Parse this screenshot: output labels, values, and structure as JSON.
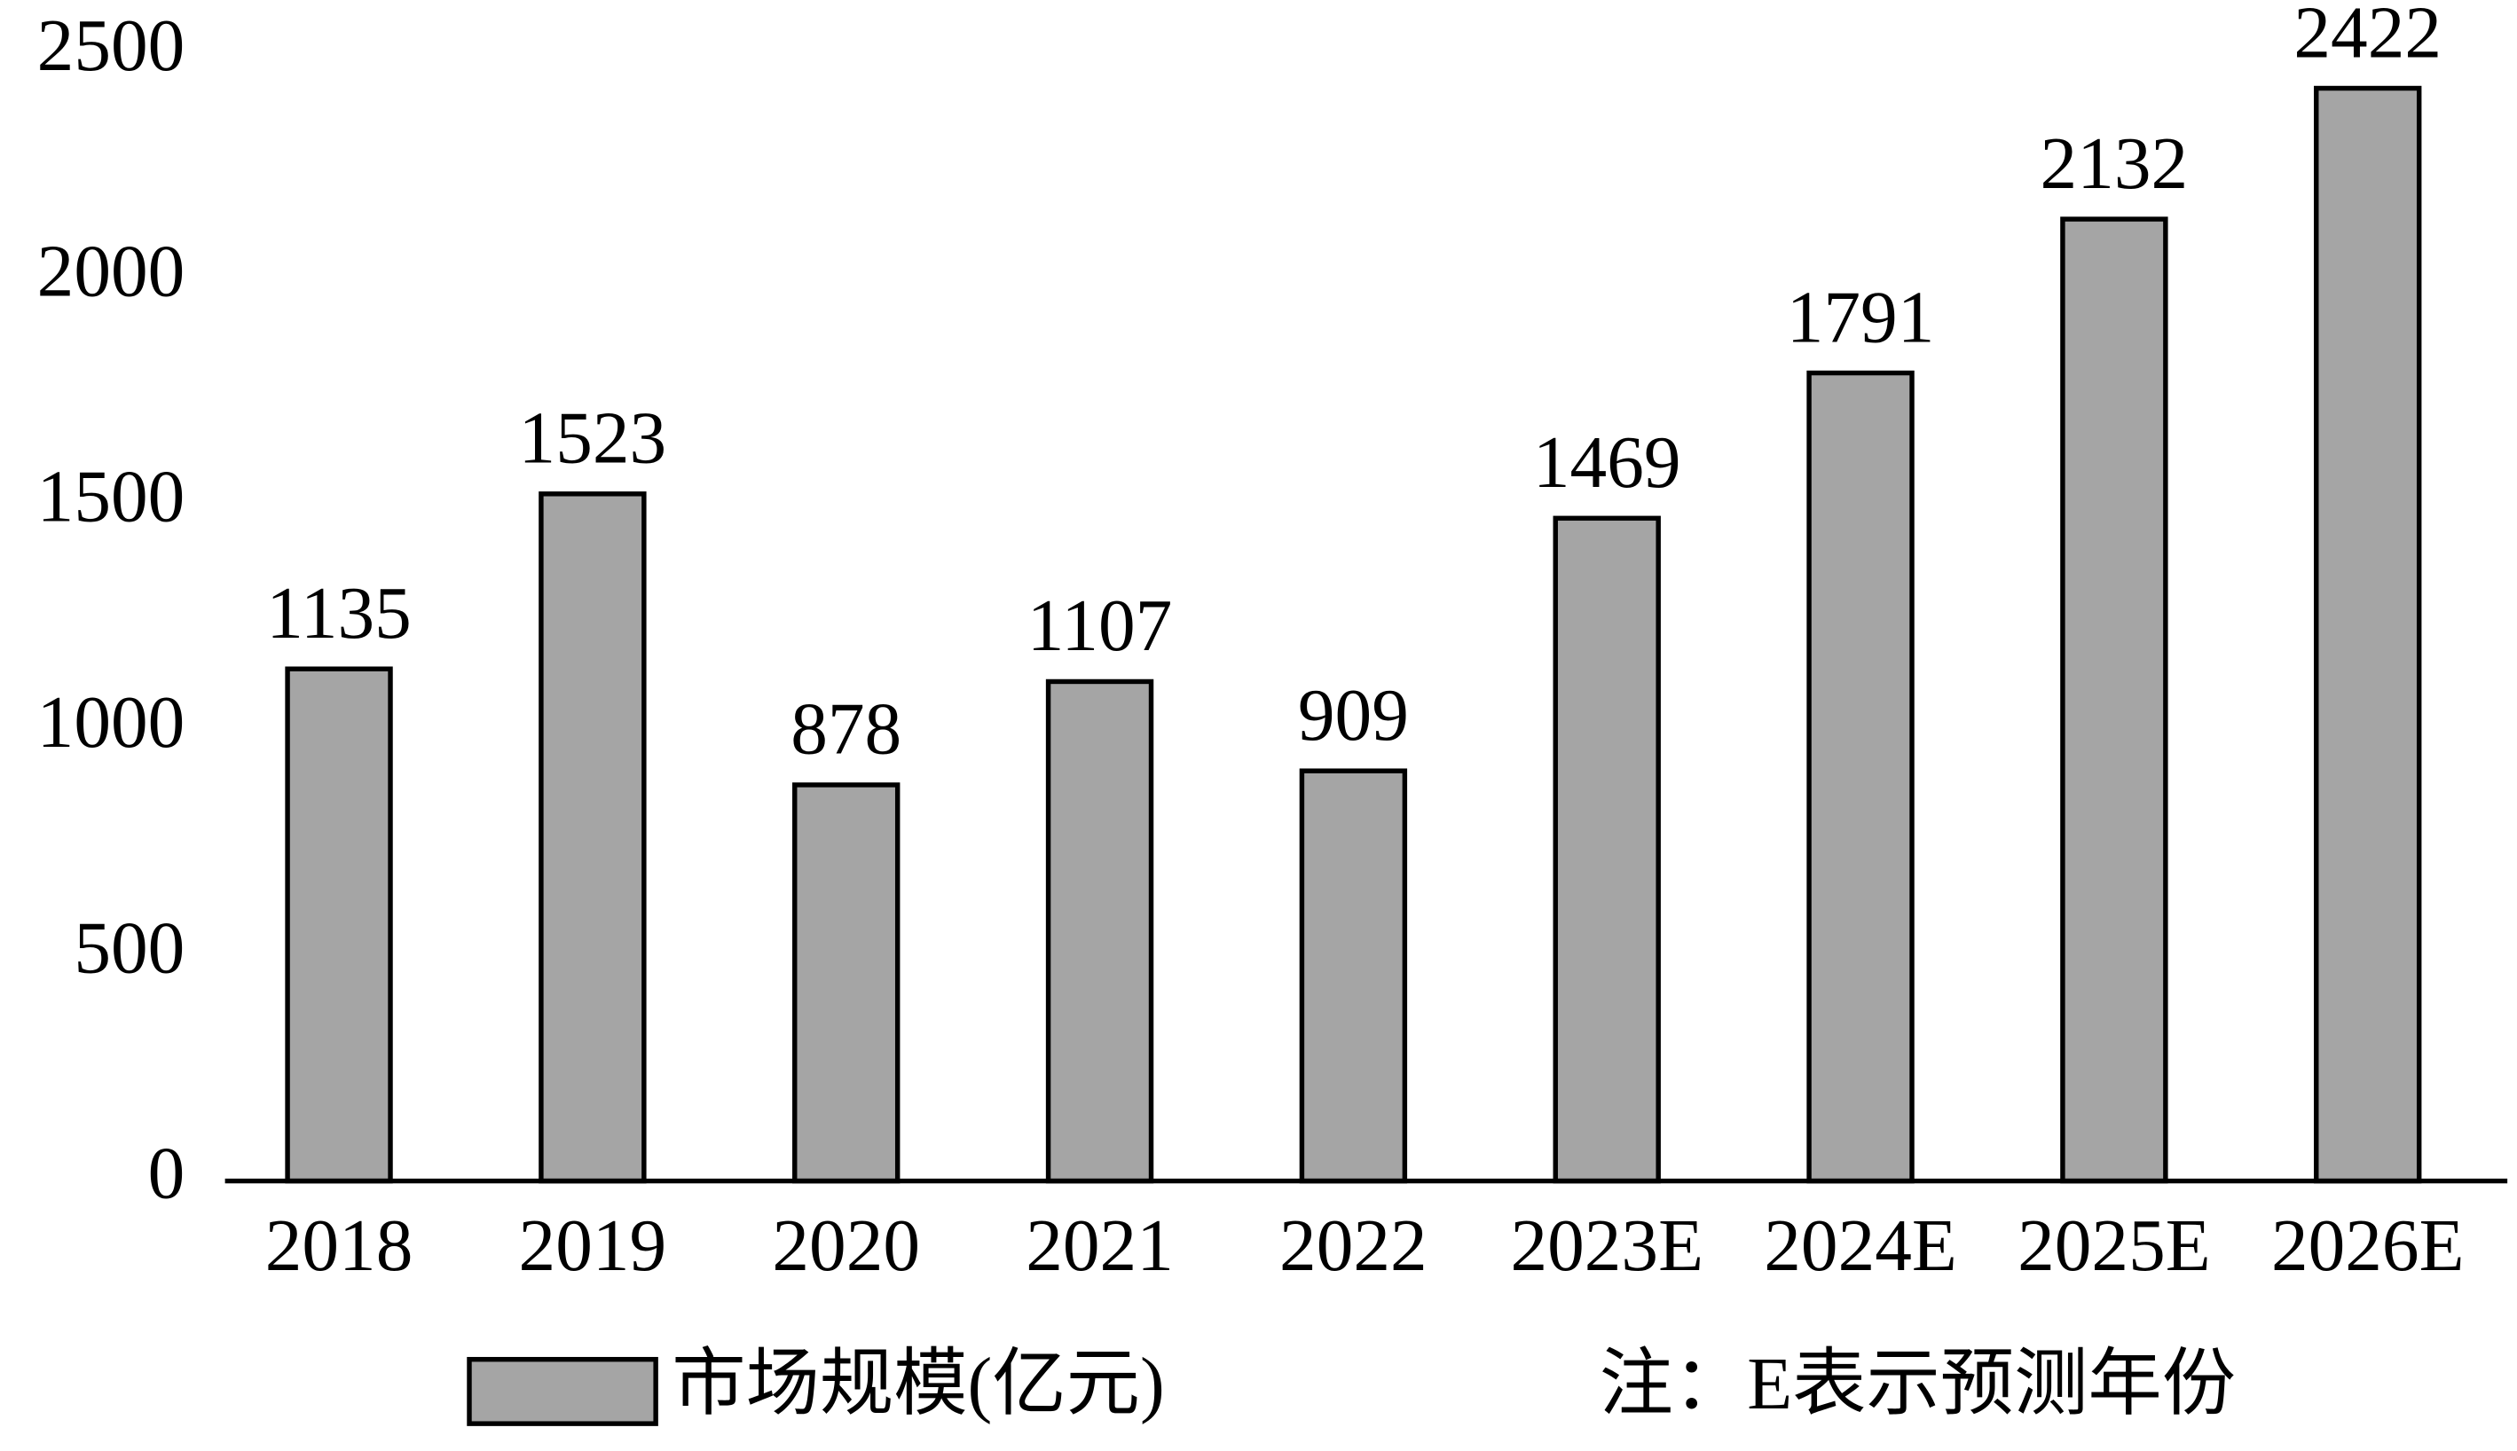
{
  "chart_data": {
    "type": "bar",
    "categories": [
      "2018",
      "2019",
      "2020",
      "2021",
      "2022",
      "2023E",
      "2024E",
      "2025E",
      "2026E"
    ],
    "series": [
      {
        "name": "市场规模(亿元)",
        "color": "#a5a5a5",
        "values": [
          1135,
          1523,
          878,
          1107,
          909,
          1469,
          1791,
          2132,
          2422
        ]
      }
    ],
    "ylim": [
      0,
      2500
    ],
    "yticks": [
      0,
      500,
      1000,
      1500,
      2000,
      2500
    ],
    "annotation": "注：E表示预测年份",
    "grid": false,
    "legend": "bottom"
  }
}
